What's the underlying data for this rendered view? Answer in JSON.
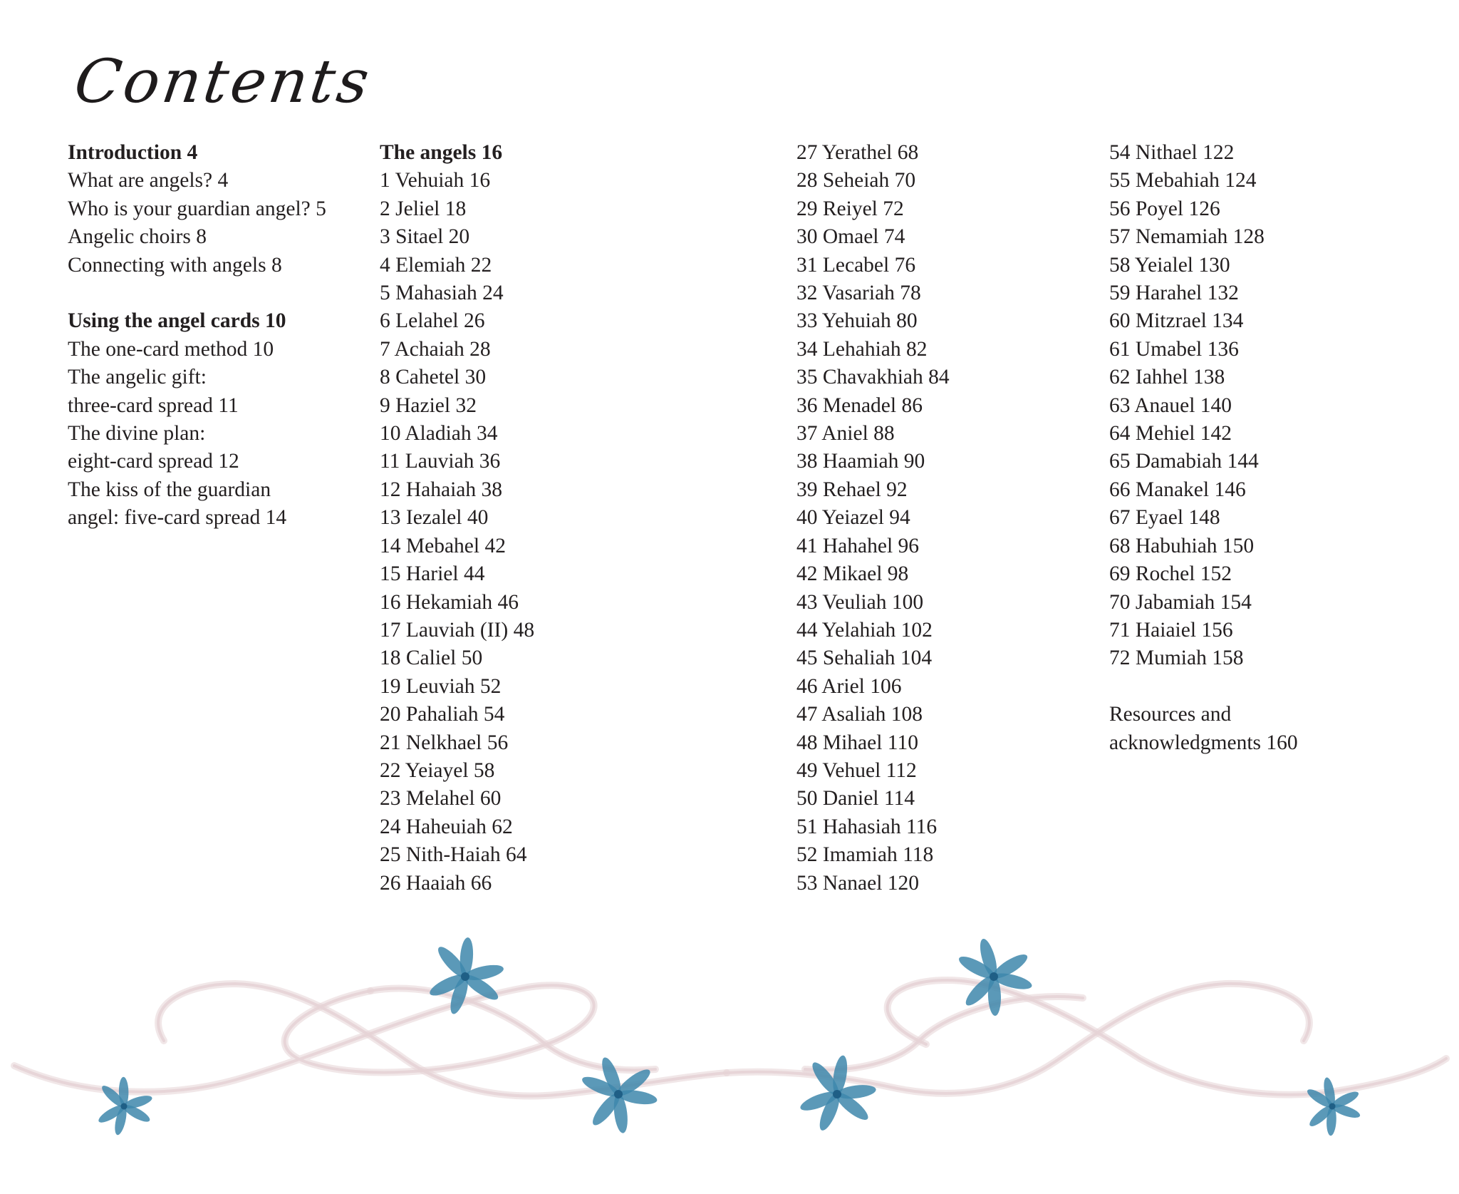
{
  "title": "Contents",
  "columns": [
    {
      "entries": [
        {
          "lines": [
            "Introduction 4"
          ],
          "bold": true
        },
        {
          "lines": [
            "What are angels? 4"
          ]
        },
        {
          "lines": [
            "Who is your guardian angel? 5"
          ]
        },
        {
          "lines": [
            "Angelic choirs 8"
          ]
        },
        {
          "lines": [
            "Connecting with angels 8"
          ]
        },
        {
          "spacer": true
        },
        {
          "lines": [
            "Using the angel cards 10"
          ],
          "bold": true
        },
        {
          "lines": [
            "The one-card method 10"
          ]
        },
        {
          "lines": [
            "The angelic gift:",
            "three-card spread 11"
          ]
        },
        {
          "lines": [
            "The divine plan:",
            "eight-card spread 12"
          ]
        },
        {
          "lines": [
            "The kiss of the guardian",
            "angel: five-card spread 14"
          ]
        }
      ]
    },
    {
      "entries": [
        {
          "lines": [
            "The angels 16"
          ],
          "bold": true
        },
        {
          "lines": [
            "1 Vehuiah 16"
          ]
        },
        {
          "lines": [
            "2 Jeliel 18"
          ]
        },
        {
          "lines": [
            "3 Sitael 20"
          ]
        },
        {
          "lines": [
            "4 Elemiah 22"
          ]
        },
        {
          "lines": [
            "5 Mahasiah 24"
          ]
        },
        {
          "lines": [
            "6 Lelahel 26"
          ]
        },
        {
          "lines": [
            "7 Achaiah 28"
          ]
        },
        {
          "lines": [
            "8 Cahetel 30"
          ]
        },
        {
          "lines": [
            "9 Haziel 32"
          ]
        },
        {
          "lines": [
            "10 Aladiah 34"
          ]
        },
        {
          "lines": [
            "11 Lauviah 36"
          ]
        },
        {
          "lines": [
            "12 Hahaiah 38"
          ]
        },
        {
          "lines": [
            "13 Iezalel 40"
          ]
        },
        {
          "lines": [
            "14 Mebahel 42"
          ]
        },
        {
          "lines": [
            "15 Hariel 44"
          ]
        },
        {
          "lines": [
            "16 Hekamiah 46"
          ]
        },
        {
          "lines": [
            "17 Lauviah (II) 48"
          ]
        },
        {
          "lines": [
            "18 Caliel 50"
          ]
        },
        {
          "lines": [
            "19 Leuviah 52"
          ]
        },
        {
          "lines": [
            "20 Pahaliah 54"
          ]
        },
        {
          "lines": [
            "21 Nelkhael 56"
          ]
        },
        {
          "lines": [
            "22 Yeiayel 58"
          ]
        },
        {
          "lines": [
            "23 Melahel 60"
          ]
        },
        {
          "lines": [
            "24 Haheuiah 62"
          ]
        },
        {
          "lines": [
            "25 Nith-Haiah 64"
          ]
        },
        {
          "lines": [
            "26 Haaiah 66"
          ]
        }
      ]
    },
    {
      "entries": [
        {
          "lines": [
            "27 Yerathel 68"
          ]
        },
        {
          "lines": [
            "28 Seheiah 70"
          ]
        },
        {
          "lines": [
            "29 Reiyel 72"
          ]
        },
        {
          "lines": [
            "30 Omael 74"
          ]
        },
        {
          "lines": [
            "31 Lecabel 76"
          ]
        },
        {
          "lines": [
            "32 Vasariah 78"
          ]
        },
        {
          "lines": [
            "33 Yehuiah 80"
          ]
        },
        {
          "lines": [
            "34 Lehahiah 82"
          ]
        },
        {
          "lines": [
            "35 Chavakhiah 84"
          ]
        },
        {
          "lines": [
            "36 Menadel 86"
          ]
        },
        {
          "lines": [
            "37 Aniel 88"
          ]
        },
        {
          "lines": [
            "38 Haamiah 90"
          ]
        },
        {
          "lines": [
            "39 Rehael 92"
          ]
        },
        {
          "lines": [
            "40 Yeiazel 94"
          ]
        },
        {
          "lines": [
            "41 Hahahel 96"
          ]
        },
        {
          "lines": [
            "42 Mikael 98"
          ]
        },
        {
          "lines": [
            "43 Veuliah 100"
          ]
        },
        {
          "lines": [
            "44 Yelahiah 102"
          ]
        },
        {
          "lines": [
            "45 Sehaliah 104"
          ]
        },
        {
          "lines": [
            "46 Ariel 106"
          ]
        },
        {
          "lines": [
            "47 Asaliah 108"
          ]
        },
        {
          "lines": [
            "48 Mihael 110"
          ]
        },
        {
          "lines": [
            "49 Vehuel 112"
          ]
        },
        {
          "lines": [
            "50 Daniel 114"
          ]
        },
        {
          "lines": [
            "51 Hahasiah 116"
          ]
        },
        {
          "lines": [
            "52 Imamiah 118"
          ]
        },
        {
          "lines": [
            "53 Nanael 120"
          ]
        }
      ]
    },
    {
      "entries": [
        {
          "lines": [
            "54 Nithael 122"
          ]
        },
        {
          "lines": [
            "55 Mebahiah 124"
          ]
        },
        {
          "lines": [
            "56 Poyel 126"
          ]
        },
        {
          "lines": [
            "57 Nemamiah 128"
          ]
        },
        {
          "lines": [
            "58 Yeialel 130"
          ]
        },
        {
          "lines": [
            "59 Harahel 132"
          ]
        },
        {
          "lines": [
            "60 Mitzrael 134"
          ]
        },
        {
          "lines": [
            "61 Umabel 136"
          ]
        },
        {
          "lines": [
            "62 Iahhel 138"
          ]
        },
        {
          "lines": [
            "63 Anauel 140"
          ]
        },
        {
          "lines": [
            "64 Mehiel 142"
          ]
        },
        {
          "lines": [
            "65 Damabiah 144"
          ]
        },
        {
          "lines": [
            "66 Manakel 146"
          ]
        },
        {
          "lines": [
            "67 Eyael 148"
          ]
        },
        {
          "lines": [
            "68 Habuhiah 150"
          ]
        },
        {
          "lines": [
            "69 Rochel 152"
          ]
        },
        {
          "lines": [
            "70 Jabamiah 154"
          ]
        },
        {
          "lines": [
            "71 Haiaiel 156"
          ]
        },
        {
          "lines": [
            "72 Mumiah 158"
          ]
        },
        {
          "spacer": true
        },
        {
          "lines": [
            "Resources and",
            "acknowledgments 160"
          ]
        }
      ]
    }
  ],
  "colors": {
    "text": "#231f20",
    "ribbon": "#e6d3d6",
    "flower": "#3e87ab",
    "flower_dark": "#1f5f86"
  },
  "decoration": {
    "flower_icon": "blue-flower-icon",
    "ribbon_icon": "pink-ribbon-swirl"
  }
}
